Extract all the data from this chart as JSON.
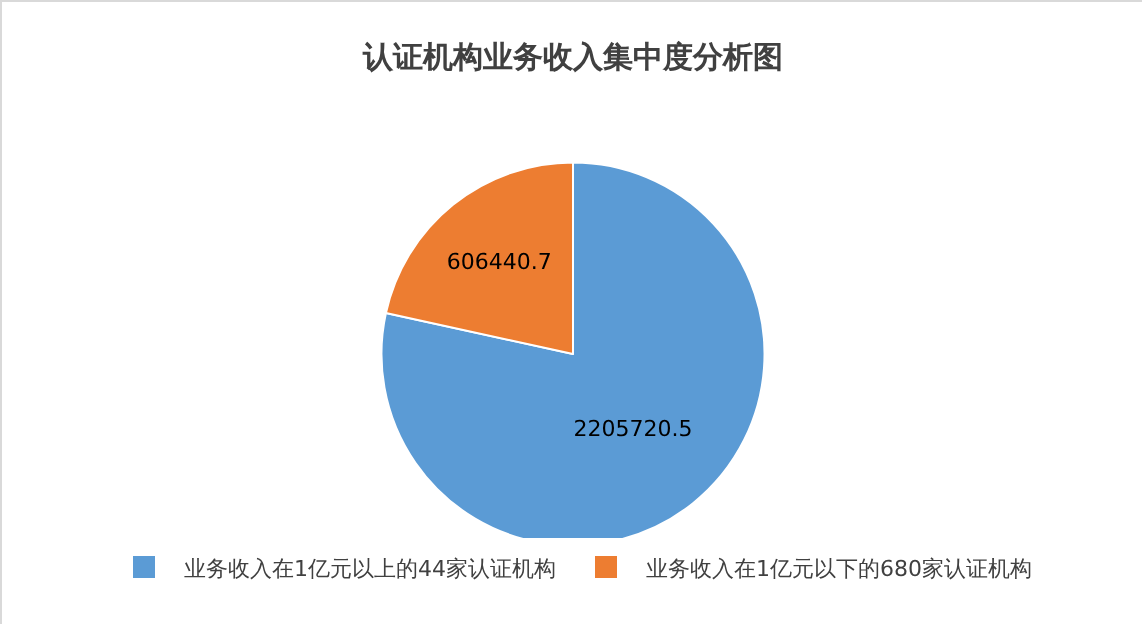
{
  "chart_data": {
    "type": "pie",
    "title": "认证机构业务收入集中度分析图",
    "categories": [
      "业务收入在1亿元以上的44家认证机构",
      "业务收入在1亿元以下的680家认证机构"
    ],
    "values": [
      2205720.5,
      606440.7
    ],
    "colors": [
      "#5b9bd5",
      "#ed7d31"
    ],
    "data_labels": true,
    "legend": "bottom"
  }
}
